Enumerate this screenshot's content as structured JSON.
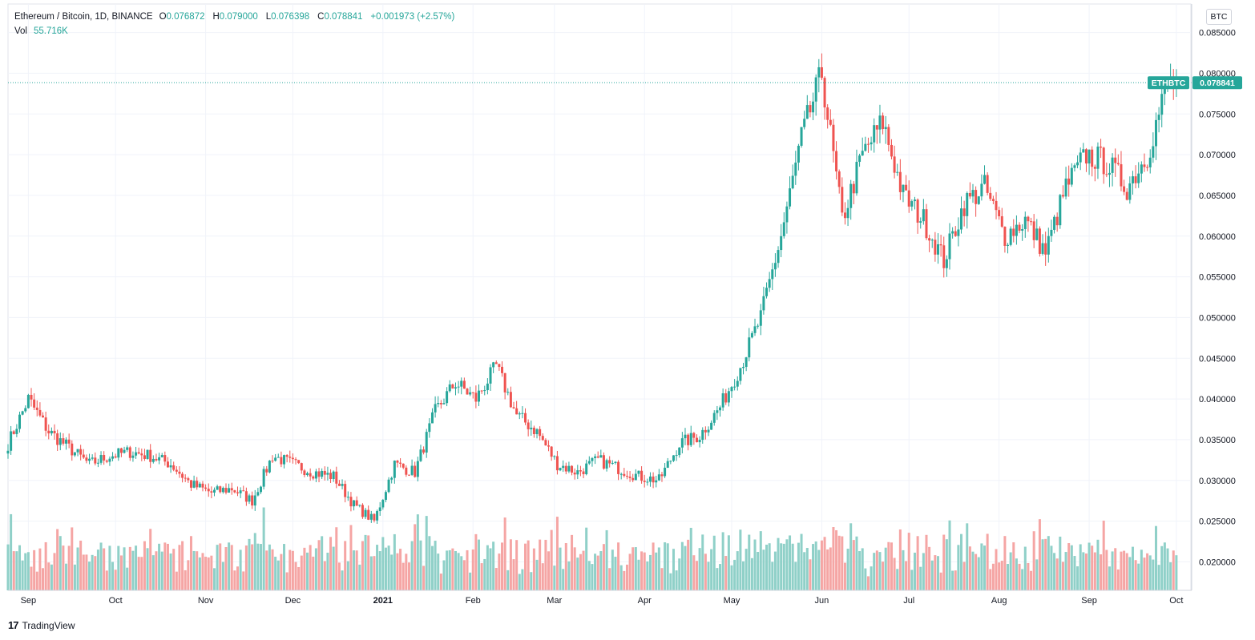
{
  "header": {
    "symbol_title": "Ethereum / Bitcoin, 1D, BINANCE",
    "open_label": "O",
    "open": "0.076872",
    "high_label": "H",
    "high": "0.079000",
    "low_label": "L",
    "low": "0.076398",
    "close_label": "C",
    "close": "0.078841",
    "change": "+0.001973 (+2.57%)",
    "vol_label": "Vol",
    "vol": "55.716K"
  },
  "currency_badge": "BTC",
  "price_tag": {
    "symbol": "ETHBTC",
    "value": "0.078841"
  },
  "footer": {
    "brand": "TradingView",
    "logo_glyph": "17"
  },
  "colors": {
    "up": "#26a69a",
    "down": "#ef5350",
    "up_vol": "#8fd0c8",
    "down_vol": "#f5a5a4",
    "grid": "#f0f3fa",
    "axis_text": "#131722",
    "last_line": "#26a69a"
  },
  "chart_data": {
    "type": "candlestick",
    "symbol": "ETHBTC",
    "interval": "1D",
    "exchange": "BINANCE",
    "ylim": [
      0.0165,
      0.0885
    ],
    "y_ticks": [
      0.02,
      0.025,
      0.03,
      0.035,
      0.04,
      0.045,
      0.05,
      0.055,
      0.06,
      0.065,
      0.07,
      0.075,
      0.08,
      0.085
    ],
    "y_tick_labels": [
      "0.020000",
      "0.025000",
      "0.030000",
      "0.035000",
      "0.040000",
      "0.045000",
      "0.050000",
      "0.055000",
      "0.060000",
      "0.065000",
      "0.070000",
      "0.075000",
      "0.080000",
      "0.085000"
    ],
    "x_tick_labels": [
      {
        "label": "Sep",
        "date": "2020-09-01"
      },
      {
        "label": "Oct",
        "date": "2020-10-01"
      },
      {
        "label": "Nov",
        "date": "2020-11-01"
      },
      {
        "label": "Dec",
        "date": "2020-12-01"
      },
      {
        "label": "2021",
        "date": "2021-01-01"
      },
      {
        "label": "Feb",
        "date": "2021-02-01"
      },
      {
        "label": "Mar",
        "date": "2021-03-01"
      },
      {
        "label": "Apr",
        "date": "2021-04-01"
      },
      {
        "label": "May",
        "date": "2021-05-01"
      },
      {
        "label": "Jun",
        "date": "2021-06-01"
      },
      {
        "label": "Jul",
        "date": "2021-07-01"
      },
      {
        "label": "Aug",
        "date": "2021-08-01"
      },
      {
        "label": "Sep",
        "date": "2021-09-01"
      },
      {
        "label": "Oct",
        "date": "2021-10-01"
      }
    ],
    "x_range": [
      "2020-08-25",
      "2021-10-06"
    ],
    "first_candle_date": "2020-08-25",
    "last_close": 0.078841,
    "close_series_weekly_approx": [
      0.0345,
      0.04,
      0.036,
      0.034,
      0.032,
      0.033,
      0.0335,
      0.033,
      0.032,
      0.0295,
      0.0285,
      0.029,
      0.0275,
      0.033,
      0.032,
      0.031,
      0.0305,
      0.027,
      0.025,
      0.032,
      0.031,
      0.0385,
      0.042,
      0.04,
      0.044,
      0.038,
      0.036,
      0.032,
      0.031,
      0.0325,
      0.0315,
      0.0305,
      0.03,
      0.0345,
      0.0355,
      0.039,
      0.044,
      0.05,
      0.06,
      0.072,
      0.08,
      0.062,
      0.07,
      0.074,
      0.065,
      0.062,
      0.057,
      0.064,
      0.066,
      0.06,
      0.062,
      0.058,
      0.066,
      0.07,
      0.069,
      0.066,
      0.07,
      0.0788
    ],
    "volume_range": [
      0,
      100
    ]
  }
}
